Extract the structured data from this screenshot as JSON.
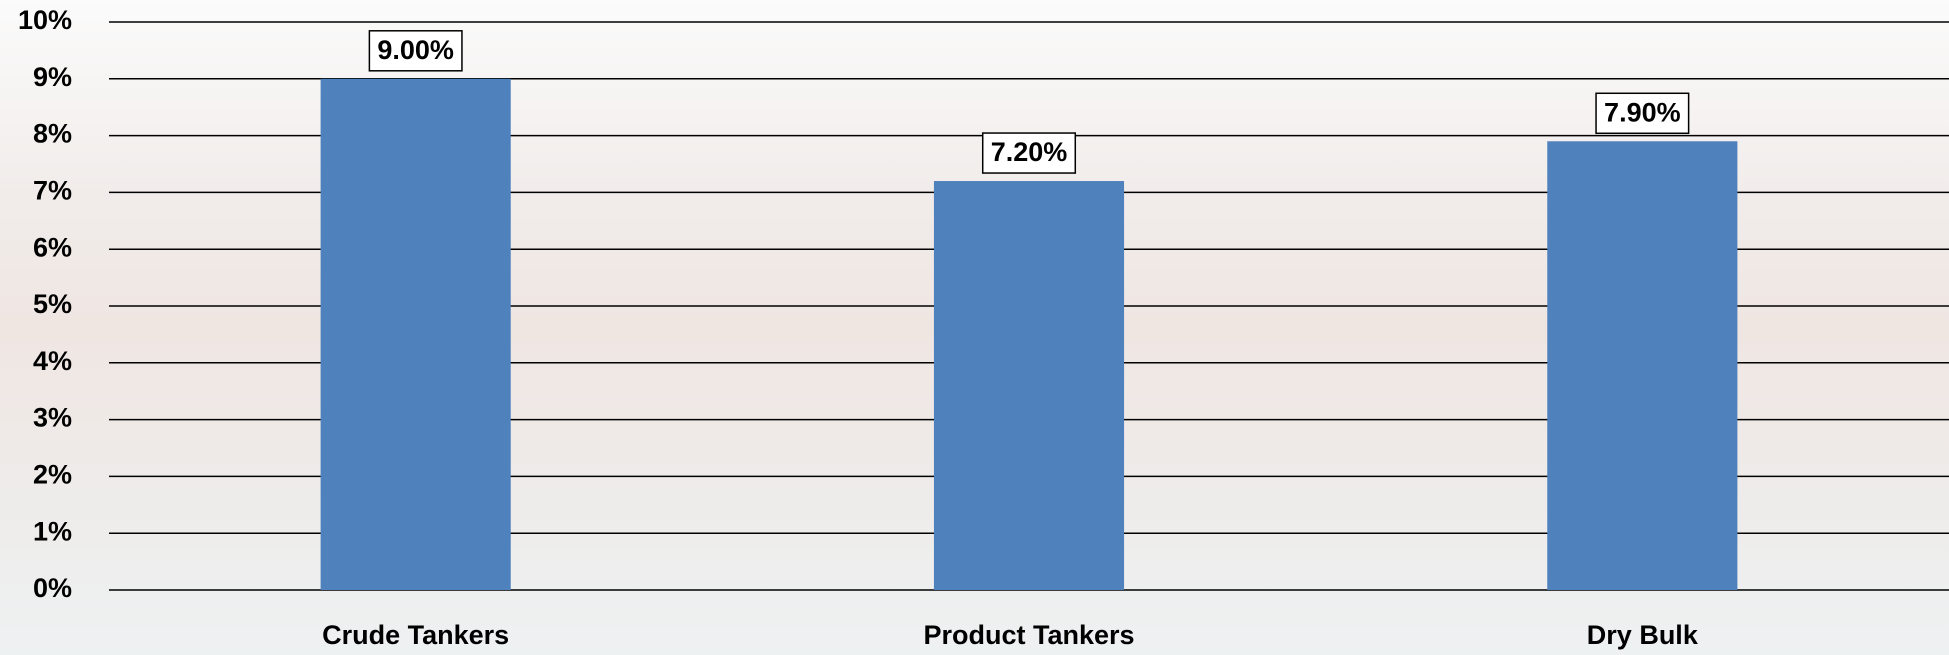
{
  "chart_data": {
    "type": "bar",
    "categories": [
      "Crude Tankers",
      "Product Tankers",
      "Dry Bulk"
    ],
    "values": [
      9,
      7.2,
      7.9
    ],
    "value_labels": [
      "9.00%",
      "7.20%",
      "7.90%"
    ],
    "color": "#4f81bd",
    "ylim": [
      0,
      10
    ],
    "yticks": [
      {
        "value": 0,
        "label": "0%"
      },
      {
        "value": 1,
        "label": "1%"
      },
      {
        "value": 2,
        "label": "2%"
      },
      {
        "value": 3,
        "label": "3%"
      },
      {
        "value": 4,
        "label": "4%"
      },
      {
        "value": 5,
        "label": "5%"
      },
      {
        "value": 6,
        "label": "6%"
      },
      {
        "value": 7,
        "label": "7%"
      },
      {
        "value": 8,
        "label": "8%"
      },
      {
        "value": 9,
        "label": "9%"
      },
      {
        "value": 10,
        "label": "10%"
      }
    ],
    "grid": true
  }
}
